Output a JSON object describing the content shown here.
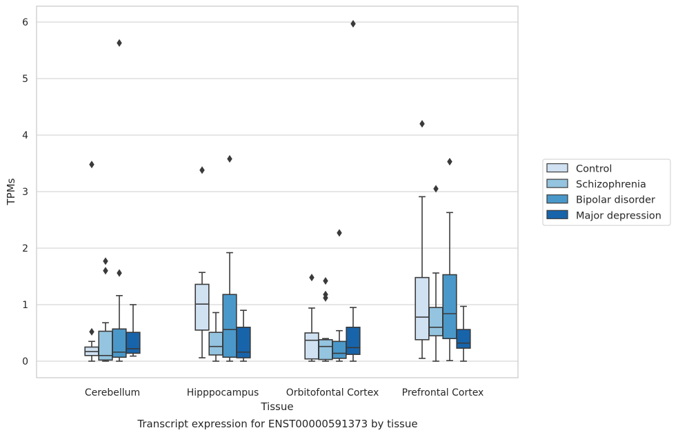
{
  "caption": "Transcript expression for ENST00000591373 by tissue",
  "colors": {
    "Control": "#d0e1f2",
    "Schizophrenia": "#94c4df",
    "Bipolar disorder": "#4a98c9",
    "Major depression": "#1764ab",
    "box_edge": "#3a3a3a",
    "grid": "#d6d6d6",
    "frame": "#cccccc"
  },
  "chart_data": {
    "type": "boxplot",
    "xlabel": "Tissue",
    "ylabel": "TPMs",
    "ylim": [
      -0.3,
      6.28
    ],
    "yticks": [
      0,
      1,
      2,
      3,
      4,
      5,
      6
    ],
    "grid": "horizontal",
    "legend_position": "right",
    "categories": [
      "Cerebellum",
      "Hipppocampus",
      "Orbitofontal Cortex",
      "Prefrontal Cortex"
    ],
    "series": [
      {
        "name": "Control",
        "boxes": [
          {
            "whislo": 0.0,
            "q1": 0.1,
            "med": 0.17,
            "q3": 0.25,
            "whishi": 0.35,
            "fliers": [
              0.52,
              3.48
            ]
          },
          {
            "whislo": 0.06,
            "q1": 0.55,
            "med": 1.01,
            "q3": 1.36,
            "whishi": 1.57,
            "fliers": [
              3.38
            ]
          },
          {
            "whislo": 0.0,
            "q1": 0.04,
            "med": 0.37,
            "q3": 0.5,
            "whishi": 0.94,
            "fliers": [
              1.48
            ]
          },
          {
            "whislo": 0.05,
            "q1": 0.38,
            "med": 0.78,
            "q3": 1.48,
            "whishi": 2.91,
            "fliers": [
              4.2
            ]
          }
        ]
      },
      {
        "name": "Schizophrenia",
        "boxes": [
          {
            "whislo": 0.0,
            "q1": 0.02,
            "med": 0.1,
            "q3": 0.53,
            "whishi": 0.68,
            "fliers": [
              1.6,
              1.77
            ]
          },
          {
            "whislo": 0.0,
            "q1": 0.11,
            "med": 0.26,
            "q3": 0.51,
            "whishi": 0.86,
            "fliers": []
          },
          {
            "whislo": 0.0,
            "q1": 0.03,
            "med": 0.26,
            "q3": 0.38,
            "whishi": 0.4,
            "fliers": [
              1.12,
              1.18,
              1.42
            ]
          },
          {
            "whislo": 0.0,
            "q1": 0.45,
            "med": 0.6,
            "q3": 0.95,
            "whishi": 1.56,
            "fliers": [
              3.05
            ]
          }
        ]
      },
      {
        "name": "Bipolar disorder",
        "boxes": [
          {
            "whislo": 0.0,
            "q1": 0.07,
            "med": 0.16,
            "q3": 0.57,
            "whishi": 1.16,
            "fliers": [
              1.56,
              5.63
            ]
          },
          {
            "whislo": 0.0,
            "q1": 0.07,
            "med": 0.56,
            "q3": 1.18,
            "whishi": 1.92,
            "fliers": [
              3.58
            ]
          },
          {
            "whislo": 0.0,
            "q1": 0.05,
            "med": 0.14,
            "q3": 0.35,
            "whishi": 0.54,
            "fliers": [
              2.27
            ]
          },
          {
            "whislo": 0.01,
            "q1": 0.4,
            "med": 0.84,
            "q3": 1.53,
            "whishi": 2.63,
            "fliers": [
              3.53
            ]
          }
        ]
      },
      {
        "name": "Major depression",
        "boxes": [
          {
            "whislo": 0.09,
            "q1": 0.14,
            "med": 0.22,
            "q3": 0.51,
            "whishi": 1.0,
            "fliers": []
          },
          {
            "whislo": 0.0,
            "q1": 0.06,
            "med": 0.16,
            "q3": 0.6,
            "whishi": 0.9,
            "fliers": []
          },
          {
            "whislo": 0.0,
            "q1": 0.12,
            "med": 0.24,
            "q3": 0.6,
            "whishi": 0.95,
            "fliers": [
              5.97
            ]
          },
          {
            "whislo": 0.0,
            "q1": 0.23,
            "med": 0.32,
            "q3": 0.56,
            "whishi": 0.97,
            "fliers": []
          }
        ]
      }
    ]
  }
}
